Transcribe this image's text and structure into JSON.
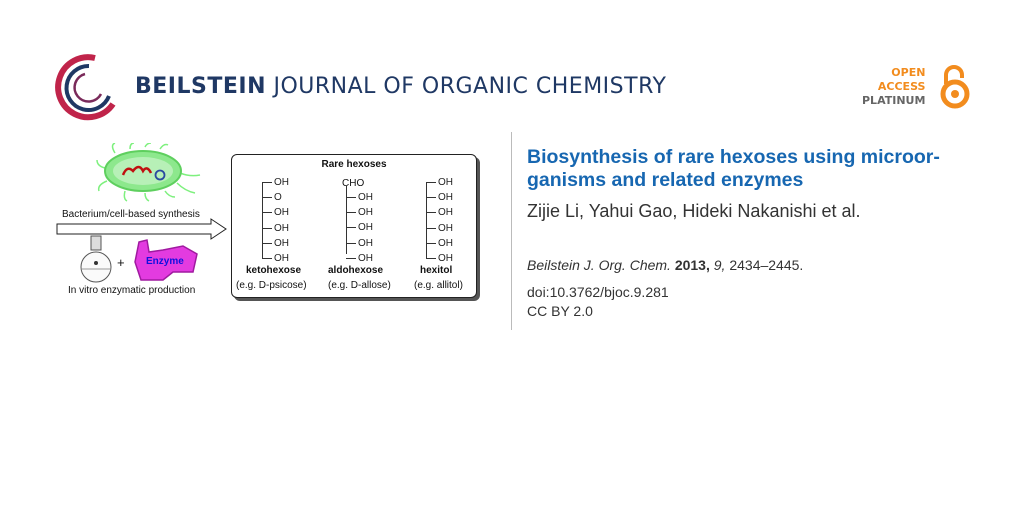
{
  "header": {
    "journal_bold": "BEILSTEIN",
    "journal_rest": " JOURNAL OF ORGANIC CHEMISTRY",
    "oa": [
      "OPEN",
      "ACCESS",
      "PLATINUM"
    ]
  },
  "article": {
    "title": "Biosynthesis of rare hexoses using microor-ganisms and related enzymes",
    "authors": "Zijie Li, Yahui Gao, Hideki Nakanishi et al.",
    "journal": "Beilstein J. Org. Chem.",
    "year": "2013,",
    "volume": "9,",
    "pages": "2434–2445.",
    "doi": "doi:10.3762/bjoc.9.281",
    "license": "CC BY 2.0"
  },
  "graphic": {
    "cell_label": "Bacterium/cell-based synthesis",
    "plus": "+",
    "enzyme": "Enzyme",
    "invitro_label": "In vitro enzymatic production",
    "box_title": "Rare hexoses",
    "columns": [
      {
        "top": "",
        "groups": [
          "OH",
          "O",
          "OH",
          "OH",
          "OH",
          "OH"
        ],
        "name": "ketohexose",
        "example": "(e.g. D-psicose)"
      },
      {
        "top": "CHO",
        "groups": [
          "OH",
          "OH",
          "OH",
          "OH",
          "OH"
        ],
        "name": "aldohexose",
        "example": "(e.g. D-allose)"
      },
      {
        "top": "",
        "groups": [
          "OH",
          "OH",
          "OH",
          "OH",
          "OH",
          "OH"
        ],
        "name": "hexitol",
        "example": "(e.g. allitol)"
      }
    ]
  }
}
